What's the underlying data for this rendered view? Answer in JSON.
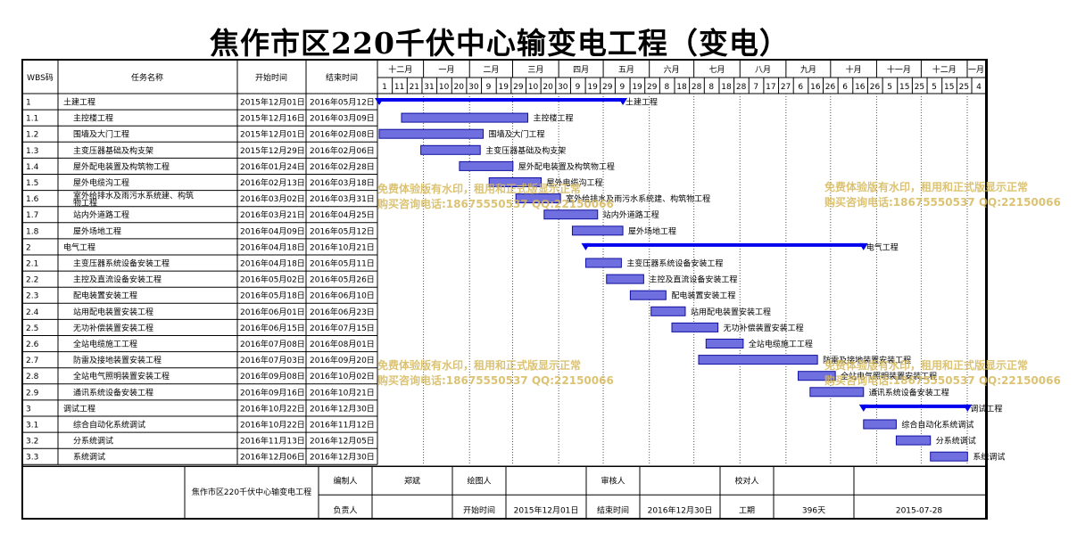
{
  "title": "焦作市区220千伏中心输变电工程（变电）",
  "headers": {
    "wbs": "WBS码",
    "name": "任务名称",
    "start": "开始时间",
    "end": "结束时间"
  },
  "months": [
    "十二月",
    "一月",
    "二月",
    "三月",
    "四月",
    "五月",
    "六月",
    "七月",
    "八月",
    "九月",
    "十月",
    "十一月",
    "十二月",
    "一月"
  ],
  "day_ticks": [
    "1",
    "11",
    "21",
    "31",
    "10",
    "20",
    "30",
    "9",
    "19",
    "29",
    "10",
    "20",
    "30",
    "9",
    "19",
    "29",
    "9",
    "19",
    "29",
    "8",
    "18",
    "28",
    "8",
    "18",
    "28",
    "7",
    "17",
    "27",
    "6",
    "16",
    "26",
    "6",
    "16",
    "26",
    "5",
    "15",
    "25",
    "5",
    "15",
    "25",
    "4",
    "14"
  ],
  "chart_data": {
    "type": "gantt",
    "x_start": "2015-12-01",
    "tasks": [
      {
        "wbs": "1",
        "name": "土建工程",
        "start": "2015年12月01日",
        "end": "2016年05月12日",
        "s": "2015-12-01",
        "e": "2016-05-12",
        "summary": true,
        "label": "土建工程"
      },
      {
        "wbs": "1.1",
        "name": "主控楼工程",
        "start": "2015年12月16日",
        "end": "2016年03月09日",
        "s": "2015-12-16",
        "e": "2016-03-09",
        "summary": false,
        "label": "主控楼工程"
      },
      {
        "wbs": "1.2",
        "name": "围墙及大门工程",
        "start": "2015年12月01日",
        "end": "2016年02月08日",
        "s": "2015-12-01",
        "e": "2016-02-08",
        "summary": false,
        "label": "围墙及大门工程"
      },
      {
        "wbs": "1.3",
        "name": "主变压器基础及构支架",
        "start": "2015年12月29日",
        "end": "2016年02月06日",
        "s": "2015-12-29",
        "e": "2016-02-06",
        "summary": false,
        "label": "主变压器基础及构支架"
      },
      {
        "wbs": "1.4",
        "name": "屋外配电装置及构筑物工程",
        "start": "2016年01月24日",
        "end": "2016年02月28日",
        "s": "2016-01-24",
        "e": "2016-02-28",
        "summary": false,
        "label": "屋外配电装置及构筑物工程"
      },
      {
        "wbs": "1.5",
        "name": "屋外电缆沟工程",
        "start": "2016年02月13日",
        "end": "2016年03月18日",
        "s": "2016-02-13",
        "e": "2016-03-18",
        "summary": false,
        "label": "屋外电缆沟工程"
      },
      {
        "wbs": "1.6",
        "name": "室外给排水及雨污水系统建、构筑物工程",
        "start": "2016年03月02日",
        "end": "2016年03月31日",
        "s": "2016-03-02",
        "e": "2016-03-31",
        "summary": false,
        "label": "室外给排水及雨污水系统建、构筑物工程"
      },
      {
        "wbs": "1.7",
        "name": "站内外道路工程",
        "start": "2016年03月21日",
        "end": "2016年04月25日",
        "s": "2016-03-21",
        "e": "2016-04-25",
        "summary": false,
        "label": "站内外道路工程"
      },
      {
        "wbs": "1.8",
        "name": "屋外场地工程",
        "start": "2016年04月09日",
        "end": "2016年05月12日",
        "s": "2016-04-09",
        "e": "2016-05-12",
        "summary": false,
        "label": "屋外场地工程"
      },
      {
        "wbs": "2",
        "name": "电气工程",
        "start": "2016年04月18日",
        "end": "2016年10月21日",
        "s": "2016-04-18",
        "e": "2016-10-21",
        "summary": true,
        "label": "电气工程"
      },
      {
        "wbs": "2.1",
        "name": "主变压器系统设备安装工程",
        "start": "2016年04月18日",
        "end": "2016年05月11日",
        "s": "2016-04-18",
        "e": "2016-05-11",
        "summary": false,
        "label": "主变压器系统设备安装工程"
      },
      {
        "wbs": "2.2",
        "name": "主控及直流设备安装工程",
        "start": "2016年05月02日",
        "end": "2016年05月26日",
        "s": "2016-05-02",
        "e": "2016-05-26",
        "summary": false,
        "label": "主控及直流设备安装工程"
      },
      {
        "wbs": "2.3",
        "name": "配电装置安装工程",
        "start": "2016年05月18日",
        "end": "2016年06月10日",
        "s": "2016-05-18",
        "e": "2016-06-10",
        "summary": false,
        "label": "配电装置安装工程"
      },
      {
        "wbs": "2.4",
        "name": "站用配电装置安装工程",
        "start": "2016年06月01日",
        "end": "2016年06月23日",
        "s": "2016-06-01",
        "e": "2016-06-23",
        "summary": false,
        "label": "站用配电装置安装工程"
      },
      {
        "wbs": "2.5",
        "name": "无功补偿装置安装工程",
        "start": "2016年06月15日",
        "end": "2016年07月15日",
        "s": "2016-06-15",
        "e": "2016-07-15",
        "summary": false,
        "label": "无功补偿装置安装工程"
      },
      {
        "wbs": "2.6",
        "name": "全站电缆施工工程",
        "start": "2016年07月08日",
        "end": "2016年08月01日",
        "s": "2016-07-08",
        "e": "2016-08-01",
        "summary": false,
        "label": "全站电缆施工工程"
      },
      {
        "wbs": "2.7",
        "name": "防雷及接地装置安装工程",
        "start": "2016年07月03日",
        "end": "2016年09月20日",
        "s": "2016-07-03",
        "e": "2016-09-20",
        "summary": false,
        "label": "防雷及接地装置安装工程"
      },
      {
        "wbs": "2.8",
        "name": "全站电气照明装置安装工程",
        "start": "2016年09月08日",
        "end": "2016年10月02日",
        "s": "2016-09-08",
        "e": "2016-10-02",
        "summary": false,
        "label": "全站电气照明装置安装工程"
      },
      {
        "wbs": "2.9",
        "name": "通讯系统设备安装工程",
        "start": "2016年09月16日",
        "end": "2016年10月21日",
        "s": "2016-09-16",
        "e": "2016-10-21",
        "summary": false,
        "label": "通讯系统设备安装工程"
      },
      {
        "wbs": "3",
        "name": "调试工程",
        "start": "2016年10月22日",
        "end": "2016年12月30日",
        "s": "2016-10-22",
        "e": "2016-12-30",
        "summary": true,
        "label": "调试工程"
      },
      {
        "wbs": "3.1",
        "name": "综合自动化系统调试",
        "start": "2016年10月22日",
        "end": "2016年11月12日",
        "s": "2016-10-22",
        "e": "2016-11-12",
        "summary": false,
        "label": "综合自动化系统调试"
      },
      {
        "wbs": "3.2",
        "name": "分系统调试",
        "start": "2016年11月13日",
        "end": "2016年12月05日",
        "s": "2016-11-13",
        "e": "2016-12-05",
        "summary": false,
        "label": "分系统调试"
      },
      {
        "wbs": "3.3",
        "name": "系统调试",
        "start": "2016年12月06日",
        "end": "2016年12月30日",
        "s": "2016-12-06",
        "e": "2016-12-30",
        "summary": false,
        "label": "系统调试"
      }
    ]
  },
  "footer": {
    "project": "焦作市区220千伏中心输变电工程",
    "editor_label": "编制人",
    "editor_value": "郑斌",
    "drawer_label": "绘图人",
    "drawer_value": "",
    "reviewer_label": "审核人",
    "reviewer_value": "",
    "checker_label": "校对人",
    "checker_value": "",
    "owner_label": "负责人",
    "owner_value": "",
    "start_label": "开始时间",
    "start_value": "2015年12月01日",
    "end_label": "结束时间",
    "end_value": "2016年12月30日",
    "duration_label": "工期",
    "duration_value": "396天",
    "date_value": "2015-07-28"
  },
  "watermark": {
    "line1": "免费体验版有水印，租用和正式版显示正常",
    "line2": "购买咨询电话:18675550537 QQ:22150066"
  },
  "colors": {
    "bar_fill": "#6f6fe0",
    "bar_border": "#1010a0",
    "summary": "#0000ee",
    "watermark": "#d6b85a"
  }
}
